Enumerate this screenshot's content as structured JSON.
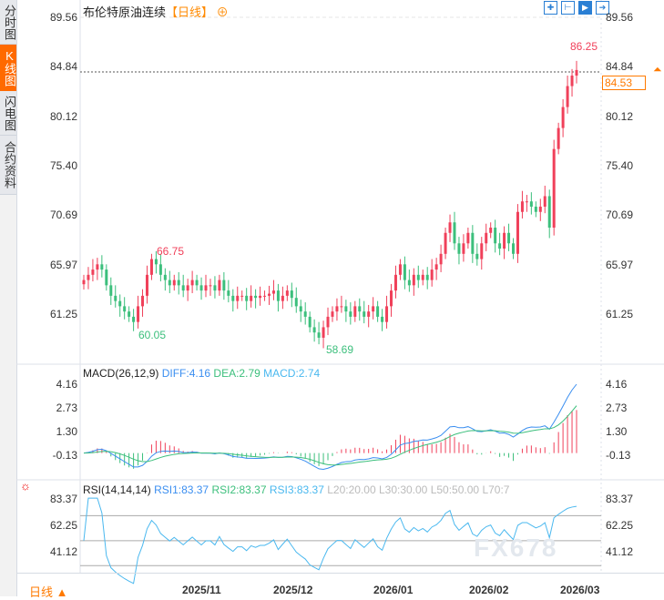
{
  "sidebar": {
    "tabs": [
      {
        "label": "分时图"
      },
      {
        "label": "K线图",
        "active": true
      },
      {
        "label": "闪电图"
      },
      {
        "label": "合约资料"
      }
    ]
  },
  "header": {
    "title": "布伦特原油连续",
    "period_tag": "【日线】",
    "add_icon": "circle-plus-icon"
  },
  "toolbar": {
    "icons": [
      "crosshair-icon",
      "fit-range-icon",
      "auto-scale-icon",
      "scroll-end-icon"
    ]
  },
  "price_axis": {
    "ticks": [
      "89.56",
      "84.84",
      "80.12",
      "75.40",
      "70.69",
      "65.97",
      "61.25"
    ],
    "current_price": "84.53",
    "max_marker": "86.25",
    "high_label": "66.75",
    "low_label1": "60.05",
    "low_label2": "58.69"
  },
  "macd": {
    "label": "MACD(26,12,9)",
    "diff": "DIFF:4.16",
    "dea": "DEA:2.79",
    "macd": "MACD:2.74",
    "ticks": [
      "4.16",
      "2.73",
      "1.30",
      "-0.13"
    ]
  },
  "rsi": {
    "label": "RSI(14,14,14)",
    "rsi1": "RSI1:83.37",
    "rsi2": "RSI2:83.37",
    "rsi3": "RSI3:83.37",
    "l20": "L20:20.00",
    "l30": "L30:30.00",
    "l50": "L50:50.00",
    "l70": "L70:7",
    "ticks": [
      "83.37",
      "62.25",
      "41.12"
    ]
  },
  "time_axis": {
    "period": "日线",
    "dates": [
      "2025/11",
      "2025/12",
      "2026/01",
      "2026/02",
      "2026/03"
    ]
  },
  "watermark": "FX678",
  "colors": {
    "up": "#f0405a",
    "down": "#3cbf7c",
    "diff": "#3a8ef0",
    "dea": "#3cbf7c",
    "accent": "#ff7a00"
  },
  "chart_data": {
    "type": "candlestick",
    "y_range": [
      61.25,
      89.56
    ],
    "closes": [
      64.5,
      65,
      65.5,
      66,
      65.5,
      64,
      63,
      62.5,
      62,
      61.5,
      61,
      60.5,
      62,
      63,
      65,
      66.5,
      66,
      65,
      64.5,
      64,
      64.5,
      64,
      63.5,
      64,
      64.5,
      64,
      63.5,
      64,
      64,
      63.5,
      64.5,
      63.5,
      63,
      62.5,
      63,
      63,
      62.5,
      63,
      62.8,
      63,
      63,
      63.2,
      63.5,
      62.5,
      63,
      63.5,
      62.8,
      62,
      61.5,
      61,
      60,
      59.5,
      59,
      60,
      61,
      61.5,
      62,
      62,
      61.5,
      61,
      62,
      61.5,
      61,
      61.5,
      62,
      61,
      60.5,
      62,
      63.5,
      65,
      66,
      64.5,
      64,
      65,
      64.5,
      65,
      64.5,
      65.5,
      66,
      67,
      69,
      70,
      68,
      67,
      68,
      69,
      67,
      66.5,
      68,
      69,
      69.5,
      68,
      67.5,
      69,
      68,
      67,
      71,
      72,
      72,
      71.5,
      71,
      71.5,
      72.5,
      69.5,
      77,
      79,
      81,
      83,
      84,
      84.53
    ]
  }
}
